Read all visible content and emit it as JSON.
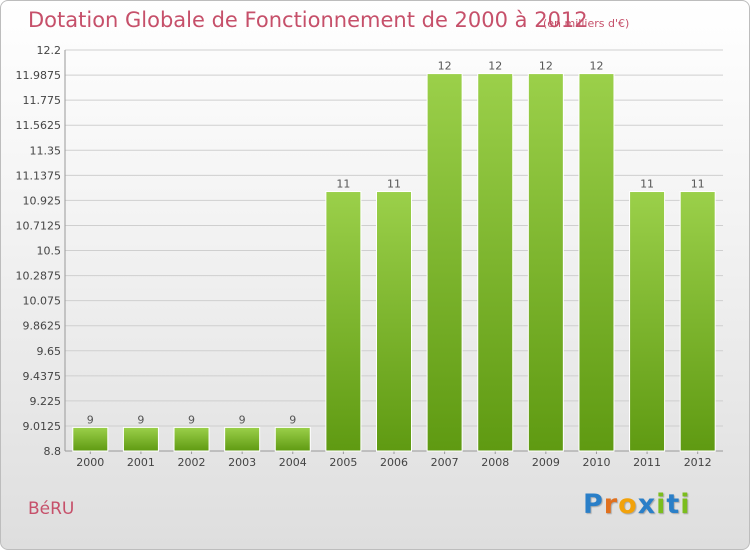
{
  "title": "Dotation Globale de Fonctionnement de 2000 à 2012",
  "unit_note": "(en milliers d'€)",
  "place": "BéRU",
  "logo": {
    "letters": [
      "P",
      "r",
      "o",
      "x",
      "i",
      "t",
      "i"
    ],
    "colors": [
      "#2a7fc8",
      "#e0701e",
      "#f2a20a",
      "#2a7fc8",
      "#7bbd1e",
      "#2a7fc8",
      "#7bbd1e"
    ]
  },
  "colors": {
    "title": "#c6506a",
    "bar_top": "#9bd04a",
    "bar_bottom": "#5f9a12",
    "grid": "#cfcfcf"
  },
  "chart_data": {
    "type": "bar",
    "categories": [
      "2000",
      "2001",
      "2002",
      "2003",
      "2004",
      "2005",
      "2006",
      "2007",
      "2008",
      "2009",
      "2010",
      "2011",
      "2012"
    ],
    "values": [
      9,
      9,
      9,
      9,
      9,
      11,
      11,
      12,
      12,
      12,
      12,
      11,
      11
    ],
    "value_labels": [
      "9",
      "9",
      "9",
      "9",
      "9",
      "11",
      "11",
      "12",
      "12",
      "12",
      "12",
      "11",
      "11"
    ],
    "y_ticks": [
      "8.8",
      "9.0125",
      "9.225",
      "9.4375",
      "9.65",
      "9.8625",
      "10.075",
      "10.2875",
      "10.5",
      "10.7125",
      "10.925",
      "11.1375",
      "11.35",
      "11.5625",
      "11.775",
      "11.9875",
      "12.2"
    ],
    "ylim": [
      8.8,
      12.2
    ],
    "grid": true,
    "title": "Dotation Globale de Fonctionnement de 2000 à 2012",
    "xlabel": "",
    "ylabel": ""
  }
}
